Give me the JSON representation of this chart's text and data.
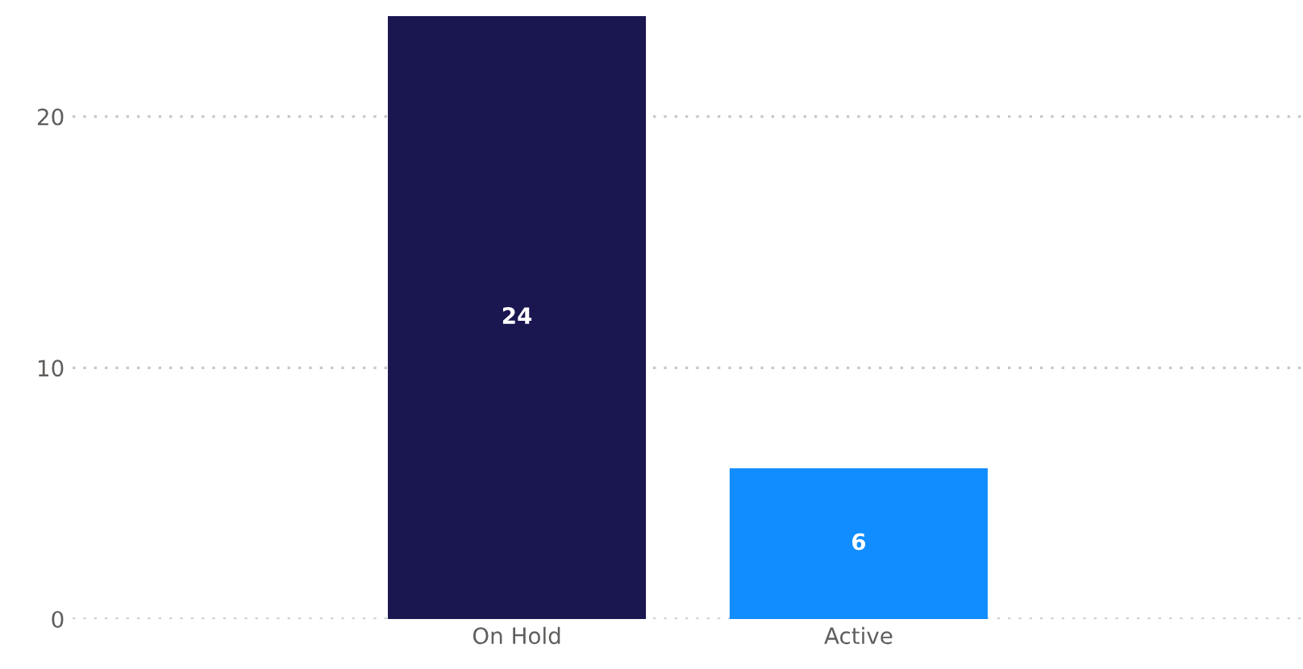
{
  "chart_data": {
    "type": "bar",
    "categories": [
      "On Hold",
      "Active"
    ],
    "values": [
      24,
      6
    ],
    "colors": [
      "#1a1650",
      "#118dff"
    ],
    "ylim": [
      0,
      24
    ],
    "yticks": [
      0,
      10,
      20
    ],
    "grid": "y",
    "data_labels": true
  }
}
